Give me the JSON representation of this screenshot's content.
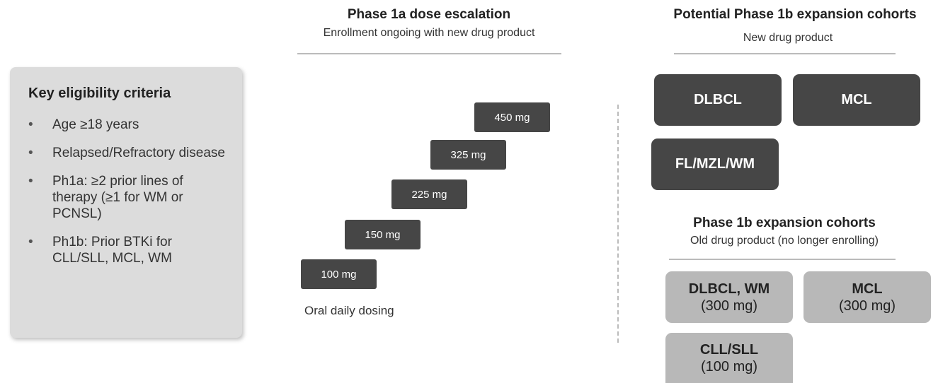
{
  "criteria": {
    "title": "Key eligibility criteria",
    "items": [
      "Age ≥18 years",
      "Relapsed/Refractory disease",
      "Ph1a: ≥2 prior lines of therapy (≥1 for WM or PCNSL)",
      "Ph1b: Prior BTKi for CLL/SLL, MCL, WM"
    ]
  },
  "phase1a": {
    "title": "Phase 1a dose escalation",
    "subtitle": "Enrollment ongoing with new drug product",
    "doses": [
      "450 mg",
      "325 mg",
      "225 mg",
      "150 mg",
      "100 mg"
    ],
    "note": "Oral daily dosing"
  },
  "potential": {
    "title": "Potential Phase 1b expansion cohorts",
    "subtitle": "New drug product",
    "cohorts": [
      "DLBCL",
      "MCL",
      "FL/MZL/WM"
    ]
  },
  "phase1b": {
    "title": "Phase 1b expansion cohorts",
    "subtitle": "Old drug product (no longer enrolling)",
    "cohorts": [
      {
        "label": "DLBCL, WM",
        "dose": "(300 mg)"
      },
      {
        "label": "MCL",
        "dose": "(300 mg)"
      },
      {
        "label": "CLL/SLL",
        "dose": "(100 mg)"
      }
    ]
  }
}
